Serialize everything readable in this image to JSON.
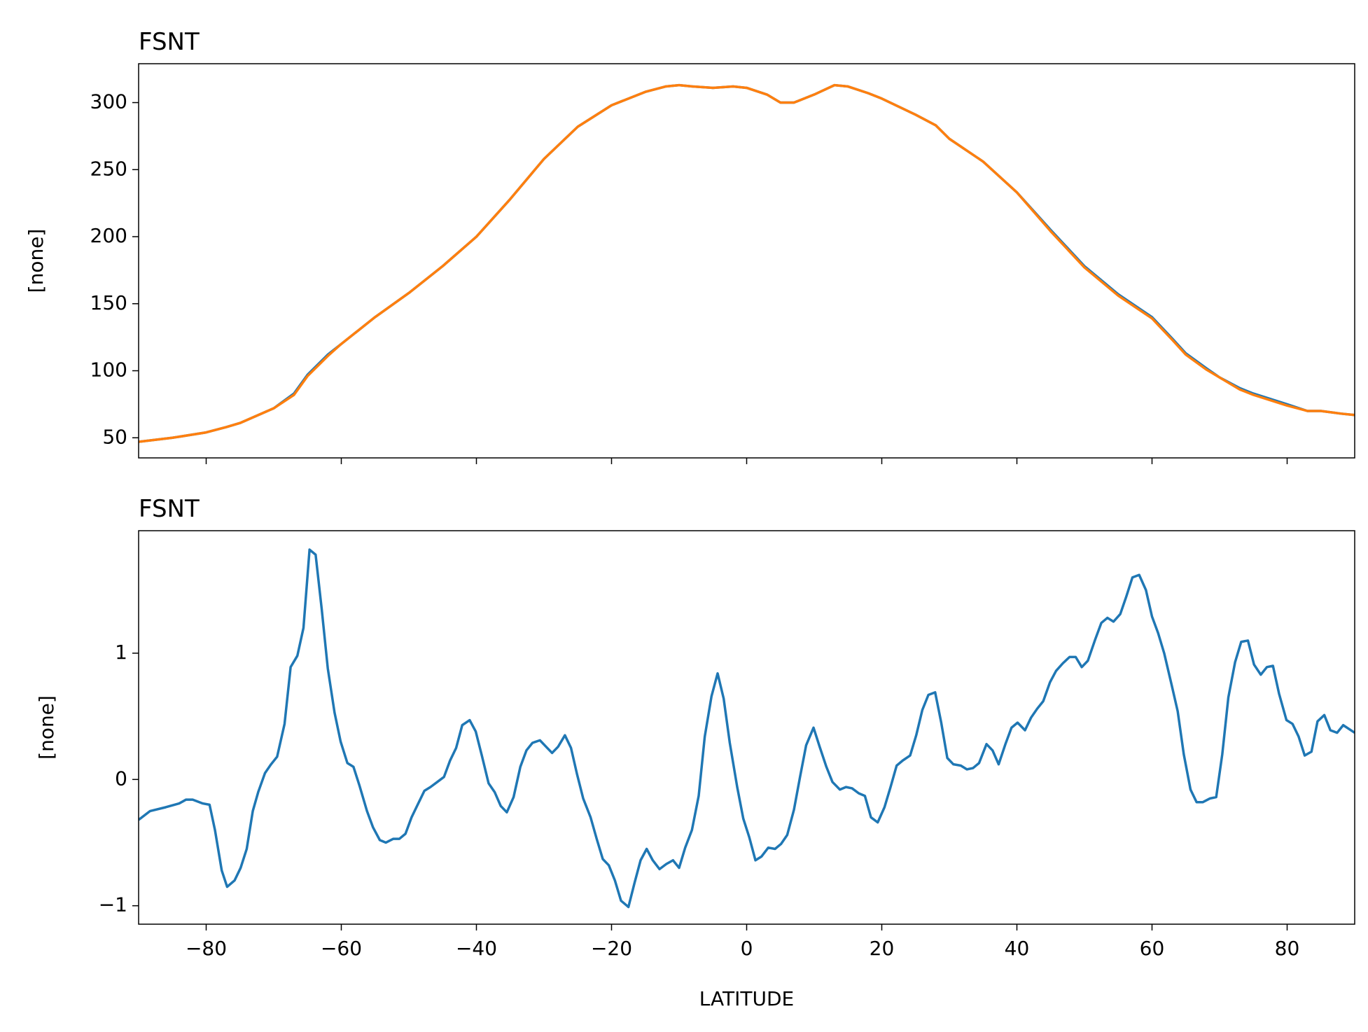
{
  "chart_data": [
    {
      "type": "line",
      "title": "FSNT",
      "y_label": "[none]",
      "x": [
        -90,
        -85,
        -80,
        -77,
        -75,
        -70,
        -67,
        -65,
        -62,
        -60,
        -55,
        -50,
        -45,
        -40,
        -35,
        -30,
        -25,
        -20,
        -15,
        -12,
        -10,
        -8,
        -5,
        -2,
        0,
        3,
        5,
        7,
        10,
        13,
        15,
        18,
        20,
        25,
        28,
        30,
        35,
        40,
        45,
        50,
        55,
        60,
        63,
        65,
        68,
        70,
        73,
        75,
        80,
        83,
        85,
        88,
        90
      ],
      "series": [
        {
          "color": "#1f77b4",
          "values": [
            47,
            50,
            54,
            58,
            61,
            72,
            83,
            97,
            112,
            120,
            140,
            158,
            178,
            200,
            228,
            258,
            282,
            298,
            308,
            312,
            313,
            312,
            311,
            312,
            311,
            306,
            300,
            300,
            306,
            313,
            312,
            307,
            303,
            291,
            283,
            273,
            256,
            233,
            205,
            178,
            157,
            140,
            124,
            113,
            102,
            95,
            87,
            83,
            75,
            70,
            70,
            68,
            67
          ]
        },
        {
          "color": "#ff7f0e",
          "values": [
            47,
            50,
            54,
            58,
            61,
            72,
            82,
            96,
            111,
            120,
            140,
            158,
            178,
            200,
            228,
            258,
            282,
            298,
            308,
            312,
            313,
            312,
            311,
            312,
            311,
            306,
            300,
            300,
            306,
            313,
            312,
            307,
            303,
            291,
            283,
            273,
            256,
            233,
            204,
            177,
            156,
            139,
            123,
            112,
            101,
            95,
            86,
            82,
            74,
            70,
            70,
            68,
            67
          ]
        }
      ],
      "xlim": [
        -90,
        90
      ],
      "xticks": [
        -80,
        -60,
        -40,
        -20,
        0,
        20,
        40,
        60,
        80
      ],
      "ylim": [
        35,
        329
      ],
      "yticks": [
        50,
        100,
        150,
        200,
        250,
        300
      ]
    },
    {
      "type": "line",
      "title": "FSNT",
      "y_label": "[none]",
      "x_label": "LATITUDE",
      "x": [
        -90,
        -88.3,
        -86,
        -84,
        -83,
        -82,
        -80.5,
        -79.5,
        -78.7,
        -77.7,
        -76.9,
        -75.8,
        -74.9,
        -74,
        -73.1,
        -72.3,
        -71.3,
        -70.4,
        -69.5,
        -68.4,
        -67.5,
        -66.5,
        -65.6,
        -64.7,
        -63.8,
        -62.9,
        -62,
        -61,
        -60.1,
        -59.1,
        -58.2,
        -57.3,
        -56.2,
        -55.3,
        -54.3,
        -53.4,
        -52.3,
        -51.4,
        -50.5,
        -49.6,
        -48.7,
        -47.7,
        -46.8,
        -45.8,
        -44.8,
        -43.9,
        -43,
        -42.1,
        -41,
        -40.1,
        -39.2,
        -38.2,
        -37.3,
        -36.4,
        -35.5,
        -34.5,
        -33.5,
        -32.6,
        -31.7,
        -30.6,
        -29.7,
        -28.8,
        -27.9,
        -26.9,
        -26,
        -25.1,
        -24.2,
        -23.1,
        -22.2,
        -21.3,
        -20.4,
        -19.5,
        -18.6,
        -17.5,
        -16.6,
        -15.7,
        -14.8,
        -13.9,
        -12.9,
        -11.9,
        -10.9,
        -10,
        -9.1,
        -8.1,
        -7.1,
        -6.2,
        -5.2,
        -4.3,
        -3.4,
        -2.5,
        -1.4,
        -0.5,
        0.4,
        1.3,
        2.2,
        3.2,
        4.2,
        5.1,
        6,
        7,
        7.9,
        8.8,
        9.9,
        10.8,
        11.8,
        12.7,
        13.8,
        14.7,
        15.6,
        16.6,
        17.5,
        18.4,
        19.4,
        20.4,
        21.3,
        22.2,
        23.1,
        24.2,
        25.1,
        26,
        26.9,
        27.9,
        28.8,
        29.7,
        30.6,
        31.7,
        32.6,
        33.5,
        34.4,
        35.5,
        36.4,
        37.3,
        38.3,
        39.2,
        40.1,
        41.2,
        42.1,
        43,
        43.9,
        44.9,
        45.8,
        46.8,
        47.8,
        48.7,
        49.6,
        50.5,
        51.6,
        52.5,
        53.4,
        54.3,
        55.3,
        56.2,
        57.1,
        58.1,
        59.1,
        60,
        60.9,
        61.8,
        62.9,
        63.8,
        64.7,
        65.7,
        66.6,
        67.5,
        68.6,
        69.5,
        70.4,
        71.3,
        72.3,
        73.2,
        74.2,
        75.1,
        76.1,
        77,
        77.9,
        78.8,
        79.9,
        80.8,
        81.7,
        82.6,
        83.6,
        84.5,
        85.5,
        86.4,
        87.4,
        88.3,
        90
      ],
      "series": [
        {
          "color": "#1f77b4",
          "values": [
            -0.32,
            -0.25,
            -0.22,
            -0.19,
            -0.16,
            -0.16,
            -0.19,
            -0.2,
            -0.4,
            -0.72,
            -0.85,
            -0.8,
            -0.7,
            -0.55,
            -0.25,
            -0.1,
            0.05,
            0.12,
            0.18,
            0.44,
            0.89,
            0.98,
            1.2,
            1.82,
            1.78,
            1.35,
            0.88,
            0.53,
            0.3,
            0.13,
            0.1,
            -0.05,
            -0.25,
            -0.38,
            -0.48,
            -0.5,
            -0.47,
            -0.47,
            -0.43,
            -0.3,
            -0.2,
            -0.09,
            -0.06,
            -0.02,
            0.02,
            0.15,
            0.25,
            0.43,
            0.47,
            0.38,
            0.19,
            -0.03,
            -0.1,
            -0.21,
            -0.26,
            -0.14,
            0.1,
            0.23,
            0.29,
            0.31,
            0.26,
            0.21,
            0.26,
            0.35,
            0.25,
            0.04,
            -0.15,
            -0.3,
            -0.47,
            -0.63,
            -0.68,
            -0.8,
            -0.96,
            -1.01,
            -0.82,
            -0.64,
            -0.55,
            -0.64,
            -0.71,
            -0.67,
            -0.64,
            -0.7,
            -0.54,
            -0.4,
            -0.13,
            0.34,
            0.66,
            0.84,
            0.64,
            0.29,
            -0.06,
            -0.31,
            -0.46,
            -0.64,
            -0.61,
            -0.54,
            -0.55,
            -0.51,
            -0.44,
            -0.24,
            0.02,
            0.27,
            0.41,
            0.26,
            0.1,
            -0.02,
            -0.08,
            -0.06,
            -0.07,
            -0.11,
            -0.13,
            -0.3,
            -0.34,
            -0.22,
            -0.06,
            0.11,
            0.15,
            0.19,
            0.35,
            0.55,
            0.67,
            0.69,
            0.45,
            0.17,
            0.12,
            0.11,
            0.08,
            0.09,
            0.13,
            0.28,
            0.23,
            0.12,
            0.28,
            0.41,
            0.45,
            0.39,
            0.49,
            0.56,
            0.62,
            0.77,
            0.86,
            0.92,
            0.97,
            0.97,
            0.89,
            0.94,
            1.11,
            1.24,
            1.28,
            1.25,
            1.31,
            1.45,
            1.6,
            1.62,
            1.5,
            1.29,
            1.16,
            1.0,
            0.75,
            0.54,
            0.2,
            -0.08,
            -0.18,
            -0.18,
            -0.15,
            -0.14,
            0.2,
            0.65,
            0.93,
            1.09,
            1.1,
            0.91,
            0.83,
            0.89,
            0.9,
            0.68,
            0.47,
            0.44,
            0.34,
            0.19,
            0.22,
            0.46,
            0.51,
            0.39,
            0.37,
            0.43,
            0.37
          ]
        }
      ],
      "xlim": [
        -90,
        90
      ],
      "xticks": [
        {
          "value": -80,
          "label": "−80"
        },
        {
          "value": -60,
          "label": "−60"
        },
        {
          "value": -40,
          "label": "−40"
        },
        {
          "value": -20,
          "label": "−20"
        },
        0,
        20,
        40,
        60,
        80
      ],
      "ylim": [
        -1.146,
        1.97
      ],
      "yticks": [
        {
          "value": -1,
          "label": "−1"
        },
        0,
        1
      ]
    }
  ]
}
